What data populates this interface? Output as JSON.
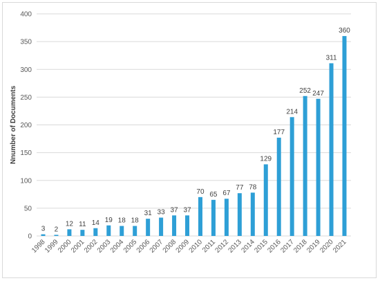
{
  "chart_data": {
    "type": "bar",
    "title": "",
    "xlabel": "",
    "ylabel": "Nnumber of Documents",
    "ylim": [
      0,
      400
    ],
    "yticks": [
      0,
      50,
      100,
      150,
      200,
      250,
      300,
      350,
      400
    ],
    "grid": true,
    "legend": "none",
    "bar_color": "#2e9fd6",
    "categories": [
      "1998",
      "1999",
      "2000",
      "2001",
      "2002",
      "2003",
      "2004",
      "2005",
      "2006",
      "2007",
      "2008",
      "2009",
      "2010",
      "2011",
      "2012",
      "2013",
      "2014",
      "2015",
      "2016",
      "2017",
      "2018",
      "2019",
      "2020",
      "2021"
    ],
    "values": [
      3,
      2,
      12,
      11,
      14,
      19,
      18,
      18,
      31,
      33,
      37,
      37,
      70,
      65,
      67,
      77,
      78,
      129,
      177,
      214,
      252,
      247,
      311,
      360
    ]
  }
}
